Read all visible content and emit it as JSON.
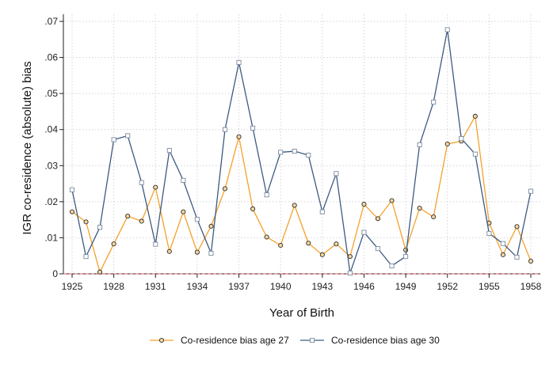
{
  "chart_data": {
    "type": "line",
    "title": "",
    "xlabel": "Year of Birth",
    "ylabel": "IGR co-residence (absolute) bias",
    "xlim": [
      1925,
      1958
    ],
    "ylim": [
      0,
      0.07
    ],
    "x_ticks": [
      1925,
      1928,
      1931,
      1934,
      1937,
      1940,
      1943,
      1946,
      1949,
      1952,
      1955,
      1958
    ],
    "x_tick_labels": [
      "1925",
      "1928",
      "1931",
      "1934",
      "1937",
      "1940",
      "1943",
      "1946",
      "1949",
      "1952",
      "1955",
      "1958"
    ],
    "y_ticks": [
      0,
      0.01,
      0.02,
      0.03,
      0.04,
      0.05,
      0.06,
      0.07
    ],
    "y_tick_labels": [
      "0",
      ".01",
      ".02",
      ".03",
      ".04",
      ".05",
      ".06",
      ".07"
    ],
    "grid": true,
    "reference_line": {
      "y": 0,
      "style": "dashed",
      "color": "#e05a5a"
    },
    "legend_position": "bottom",
    "x": [
      1925,
      1926,
      1927,
      1928,
      1929,
      1930,
      1931,
      1932,
      1933,
      1934,
      1935,
      1936,
      1937,
      1938,
      1939,
      1940,
      1941,
      1942,
      1943,
      1944,
      1945,
      1946,
      1947,
      1948,
      1949,
      1950,
      1951,
      1952,
      1953,
      1954,
      1955,
      1956,
      1957,
      1958
    ],
    "series": [
      {
        "name": "Co-residence bias age 27",
        "color": "#f4a12c",
        "marker": "circle",
        "values": [
          0.0172,
          0.0144,
          0.0005,
          0.0083,
          0.016,
          0.0146,
          0.024,
          0.0062,
          0.0172,
          0.006,
          0.0132,
          0.0236,
          0.038,
          0.018,
          0.0102,
          0.0079,
          0.019,
          0.0085,
          0.0053,
          0.0083,
          0.0048,
          0.0193,
          0.0153,
          0.0203,
          0.0066,
          0.0182,
          0.0158,
          0.036,
          0.0368,
          0.0437,
          0.0141,
          0.0053,
          0.0131,
          0.0035
        ]
      },
      {
        "name": "Co-residence bias age 30",
        "color": "#3d5a80",
        "marker": "square",
        "values": [
          0.0233,
          0.0048,
          0.0129,
          0.0372,
          0.0383,
          0.0253,
          0.0082,
          0.0342,
          0.0259,
          0.0151,
          0.0057,
          0.04,
          0.0586,
          0.0404,
          0.0219,
          0.0337,
          0.034,
          0.0329,
          0.0172,
          0.0278,
          0.0002,
          0.0115,
          0.007,
          0.0022,
          0.0048,
          0.0358,
          0.0476,
          0.0677,
          0.0375,
          0.0332,
          0.0112,
          0.0084,
          0.0046,
          0.0229
        ]
      }
    ]
  }
}
